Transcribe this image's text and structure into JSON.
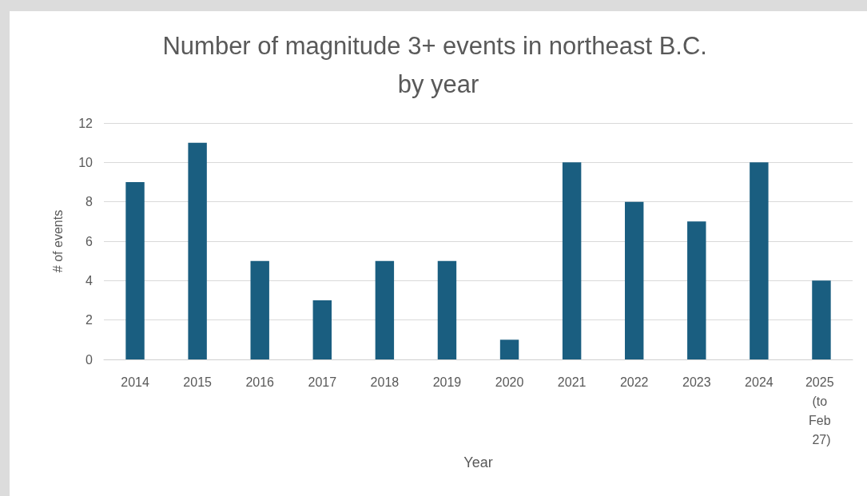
{
  "chart_data": {
    "type": "bar",
    "title": "Number of magnitude 3+ events in northeast B.C. by year",
    "xlabel": "Year",
    "ylabel": "# of events",
    "categories": [
      "2014",
      "2015",
      "2016",
      "2017",
      "2018",
      "2019",
      "2020",
      "2021",
      "2022",
      "2023",
      "2024",
      "2025 (to Feb 27)"
    ],
    "series": [
      {
        "color": "#1a5e80",
        "values": [
          9,
          11,
          5,
          3,
          5,
          5,
          1,
          10,
          8,
          7,
          10,
          4
        ]
      }
    ],
    "ylim": [
      0,
      12
    ],
    "yticks": [
      0,
      2,
      4,
      6,
      8,
      10,
      12
    ],
    "grid": "y"
  }
}
